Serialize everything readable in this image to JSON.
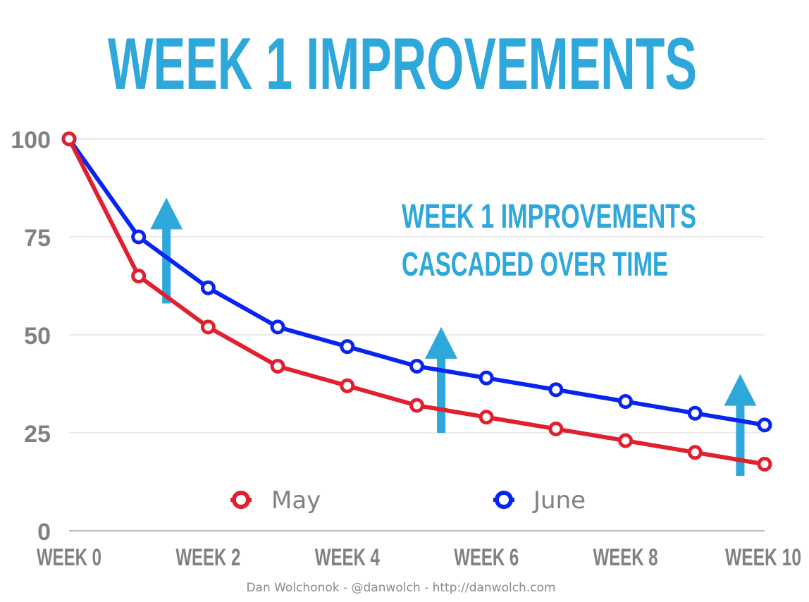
{
  "chart_data": {
    "type": "line",
    "title": "WEEK 1 IMPROVEMENTS",
    "xlabel": "",
    "ylabel": "",
    "x": [
      0,
      1,
      2,
      3,
      4,
      5,
      6,
      7,
      8,
      9,
      10
    ],
    "x_tick_values": [
      0,
      2,
      4,
      6,
      8,
      10
    ],
    "x_tick_labels": [
      "WEEK 0",
      "WEEK 2",
      "WEEK 4",
      "WEEK 6",
      "WEEK 8",
      "WEEK 10"
    ],
    "y_tick_values": [
      0,
      25,
      50,
      75,
      100
    ],
    "y_tick_labels": [
      "0",
      "25",
      "50",
      "75",
      "100"
    ],
    "xlim": [
      0,
      10
    ],
    "ylim": [
      0,
      100
    ],
    "grid": "horizontal",
    "legend": "bottom",
    "series": [
      {
        "name": "May",
        "color": "#e0202e",
        "values": [
          100,
          65,
          52,
          42,
          37,
          32,
          29,
          26,
          23,
          20,
          17
        ]
      },
      {
        "name": "June",
        "color": "#0a24f0",
        "values": [
          100,
          75,
          62,
          52,
          47,
          42,
          39,
          36,
          33,
          30,
          27
        ]
      }
    ],
    "annotation": {
      "lines": [
        "WEEK 1 IMPROVEMENTS",
        "CASCADED OVER TIME"
      ],
      "color": "#2ea7db"
    },
    "arrows": [
      {
        "x": 1.4,
        "y_from": 58,
        "y_to": 85
      },
      {
        "x": 5.35,
        "y_from": 25,
        "y_to": 52
      },
      {
        "x": 9.65,
        "y_from": 14,
        "y_to": 40
      }
    ],
    "title_color": "#2ea7db",
    "axis_text_color": "#7f8284"
  },
  "footer": "Dan Wolchonok - @danwolch - http://danwolch.com"
}
